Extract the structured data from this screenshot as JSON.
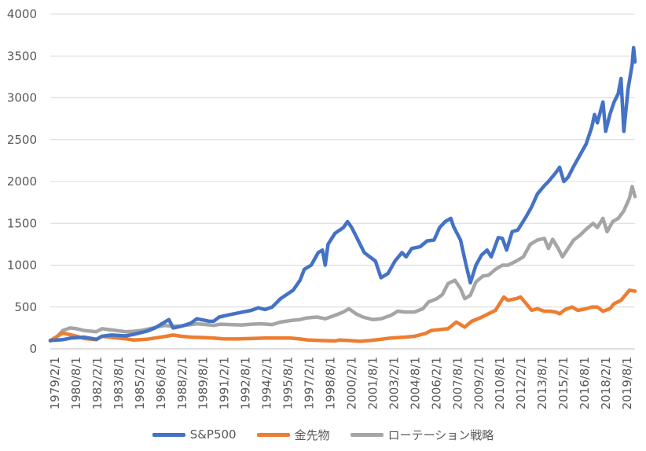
{
  "chart_data": {
    "type": "line",
    "title": "",
    "xlabel": "",
    "ylabel": "",
    "ylim": [
      0,
      4000
    ],
    "yticks": [
      0,
      500,
      1000,
      1500,
      2000,
      2500,
      3000,
      3500,
      4000
    ],
    "xticks": [
      "1979/2/1",
      "1980/8/1",
      "1982/2/1",
      "1983/8/1",
      "1985/2/1",
      "1986/8/1",
      "1988/2/1",
      "1989/8/1",
      "1991/2/1",
      "1992/8/1",
      "1994/2/1",
      "1995/8/1",
      "1997/2/1",
      "1998/8/1",
      "2000/2/1",
      "2001/8/1",
      "2003/2/1",
      "2004/8/1",
      "2006/2/1",
      "2007/8/1",
      "2009/2/1",
      "2010/8/1",
      "2012/2/1",
      "2013/8/1",
      "2015/2/1",
      "2016/8/1",
      "2018/2/1",
      "2019/8/1"
    ],
    "grid": true,
    "legend_position": "bottom",
    "series": [
      {
        "name": "S&P500",
        "color": "#4472c4",
        "points": [
          [
            1979.1,
            100
          ],
          [
            1980.0,
            110
          ],
          [
            1980.6,
            130
          ],
          [
            1981.5,
            140
          ],
          [
            1982.4,
            115
          ],
          [
            1982.8,
            150
          ],
          [
            1983.5,
            165
          ],
          [
            1984.5,
            155
          ],
          [
            1985.1,
            175
          ],
          [
            1986.0,
            210
          ],
          [
            1986.6,
            250
          ],
          [
            1987.3,
            320
          ],
          [
            1987.6,
            350
          ],
          [
            1987.9,
            250
          ],
          [
            1988.5,
            270
          ],
          [
            1989.2,
            310
          ],
          [
            1989.6,
            360
          ],
          [
            1990.5,
            330
          ],
          [
            1990.8,
            330
          ],
          [
            1991.2,
            380
          ],
          [
            1992.0,
            410
          ],
          [
            1992.6,
            430
          ],
          [
            1993.5,
            460
          ],
          [
            1994.0,
            490
          ],
          [
            1994.5,
            470
          ],
          [
            1995.0,
            500
          ],
          [
            1995.6,
            600
          ],
          [
            1996.5,
            700
          ],
          [
            1997.0,
            820
          ],
          [
            1997.3,
            950
          ],
          [
            1997.8,
            1000
          ],
          [
            1998.3,
            1150
          ],
          [
            1998.6,
            1180
          ],
          [
            1998.8,
            1000
          ],
          [
            1999.0,
            1250
          ],
          [
            1999.5,
            1380
          ],
          [
            2000.1,
            1450
          ],
          [
            2000.4,
            1520
          ],
          [
            2000.7,
            1450
          ],
          [
            2001.0,
            1350
          ],
          [
            2001.6,
            1150
          ],
          [
            2002.0,
            1100
          ],
          [
            2002.4,
            1050
          ],
          [
            2002.8,
            850
          ],
          [
            2003.3,
            900
          ],
          [
            2003.8,
            1050
          ],
          [
            2004.3,
            1150
          ],
          [
            2004.6,
            1100
          ],
          [
            2005.0,
            1200
          ],
          [
            2005.6,
            1220
          ],
          [
            2006.1,
            1290
          ],
          [
            2006.6,
            1300
          ],
          [
            2007.0,
            1450
          ],
          [
            2007.4,
            1520
          ],
          [
            2007.8,
            1560
          ],
          [
            2008.0,
            1460
          ],
          [
            2008.5,
            1300
          ],
          [
            2008.9,
            1000
          ],
          [
            2009.2,
            790
          ],
          [
            2009.6,
            1000
          ],
          [
            2010.0,
            1120
          ],
          [
            2010.4,
            1180
          ],
          [
            2010.7,
            1100
          ],
          [
            2011.2,
            1330
          ],
          [
            2011.5,
            1320
          ],
          [
            2011.8,
            1180
          ],
          [
            2012.2,
            1400
          ],
          [
            2012.6,
            1420
          ],
          [
            2013.2,
            1580
          ],
          [
            2013.6,
            1700
          ],
          [
            2014.0,
            1850
          ],
          [
            2014.5,
            1950
          ],
          [
            2014.8,
            2000
          ],
          [
            2015.3,
            2100
          ],
          [
            2015.6,
            2170
          ],
          [
            2015.9,
            2000
          ],
          [
            2016.2,
            2050
          ],
          [
            2016.6,
            2180
          ],
          [
            2017.0,
            2300
          ],
          [
            2017.5,
            2450
          ],
          [
            2017.9,
            2650
          ],
          [
            2018.1,
            2800
          ],
          [
            2018.3,
            2700
          ],
          [
            2018.7,
            2950
          ],
          [
            2018.9,
            2600
          ],
          [
            2019.2,
            2800
          ],
          [
            2019.5,
            2950
          ],
          [
            2019.8,
            3050
          ],
          [
            2020.0,
            3230
          ],
          [
            2020.2,
            2600
          ],
          [
            2020.5,
            3100
          ],
          [
            2020.8,
            3400
          ],
          [
            2020.9,
            3600
          ],
          [
            2021.0,
            3430
          ]
        ]
      },
      {
        "name": "金先物",
        "color": "#ed7d31",
        "points": [
          [
            1979.1,
            95
          ],
          [
            1979.6,
            150
          ],
          [
            1980.0,
            190
          ],
          [
            1980.5,
            170
          ],
          [
            1981.0,
            150
          ],
          [
            1981.5,
            125
          ],
          [
            1982.4,
            110
          ],
          [
            1982.8,
            150
          ],
          [
            1983.2,
            145
          ],
          [
            1983.6,
            135
          ],
          [
            1984.5,
            120
          ],
          [
            1985.1,
            105
          ],
          [
            1986.0,
            115
          ],
          [
            1986.6,
            130
          ],
          [
            1987.4,
            150
          ],
          [
            1987.9,
            165
          ],
          [
            1988.5,
            150
          ],
          [
            1989.2,
            140
          ],
          [
            1990.0,
            135
          ],
          [
            1990.8,
            130
          ],
          [
            1991.5,
            120
          ],
          [
            1992.5,
            118
          ],
          [
            1993.6,
            125
          ],
          [
            1994.5,
            130
          ],
          [
            1995.5,
            130
          ],
          [
            1996.3,
            130
          ],
          [
            1996.9,
            120
          ],
          [
            1997.6,
            105
          ],
          [
            1998.5,
            100
          ],
          [
            1999.5,
            95
          ],
          [
            1999.8,
            105
          ],
          [
            2000.5,
            100
          ],
          [
            2001.3,
            90
          ],
          [
            2002.0,
            100
          ],
          [
            2002.8,
            115
          ],
          [
            2003.5,
            130
          ],
          [
            2004.5,
            140
          ],
          [
            2005.2,
            150
          ],
          [
            2006.0,
            185
          ],
          [
            2006.4,
            220
          ],
          [
            2007.0,
            230
          ],
          [
            2007.6,
            240
          ],
          [
            2008.2,
            320
          ],
          [
            2008.8,
            260
          ],
          [
            2009.3,
            330
          ],
          [
            2009.9,
            370
          ],
          [
            2010.5,
            420
          ],
          [
            2011.0,
            460
          ],
          [
            2011.6,
            620
          ],
          [
            2011.9,
            580
          ],
          [
            2012.5,
            600
          ],
          [
            2012.8,
            620
          ],
          [
            2013.3,
            520
          ],
          [
            2013.6,
            460
          ],
          [
            2014.0,
            480
          ],
          [
            2014.5,
            450
          ],
          [
            2014.9,
            450
          ],
          [
            2015.3,
            440
          ],
          [
            2015.6,
            420
          ],
          [
            2016.0,
            470
          ],
          [
            2016.5,
            500
          ],
          [
            2016.9,
            460
          ],
          [
            2017.5,
            480
          ],
          [
            2017.9,
            500
          ],
          [
            2018.3,
            500
          ],
          [
            2018.7,
            450
          ],
          [
            2019.2,
            480
          ],
          [
            2019.5,
            540
          ],
          [
            2020.0,
            580
          ],
          [
            2020.6,
            700
          ],
          [
            2021.0,
            690
          ]
        ]
      },
      {
        "name": "ローテーション戦略",
        "color": "#a5a5a5",
        "points": [
          [
            1979.1,
            100
          ],
          [
            1979.6,
            150
          ],
          [
            1980.0,
            220
          ],
          [
            1980.5,
            250
          ],
          [
            1981.0,
            240
          ],
          [
            1981.5,
            220
          ],
          [
            1982.4,
            205
          ],
          [
            1982.8,
            240
          ],
          [
            1983.3,
            230
          ],
          [
            1983.8,
            220
          ],
          [
            1984.5,
            205
          ],
          [
            1985.1,
            210
          ],
          [
            1985.6,
            220
          ],
          [
            1986.2,
            240
          ],
          [
            1986.7,
            260
          ],
          [
            1987.3,
            280
          ],
          [
            1987.9,
            270
          ],
          [
            1988.5,
            275
          ],
          [
            1989.2,
            290
          ],
          [
            1989.6,
            300
          ],
          [
            1990.3,
            290
          ],
          [
            1990.8,
            280
          ],
          [
            1991.3,
            295
          ],
          [
            1992.0,
            290
          ],
          [
            1992.8,
            285
          ],
          [
            1993.5,
            295
          ],
          [
            1994.2,
            300
          ],
          [
            1995.0,
            290
          ],
          [
            1995.6,
            320
          ],
          [
            1996.4,
            340
          ],
          [
            1997.0,
            350
          ],
          [
            1997.5,
            370
          ],
          [
            1998.2,
            380
          ],
          [
            1998.8,
            360
          ],
          [
            1999.5,
            400
          ],
          [
            2000.1,
            440
          ],
          [
            2000.5,
            480
          ],
          [
            2001.0,
            420
          ],
          [
            2001.5,
            380
          ],
          [
            2002.2,
            350
          ],
          [
            2002.8,
            360
          ],
          [
            2003.5,
            400
          ],
          [
            2004.0,
            450
          ],
          [
            2004.5,
            440
          ],
          [
            2005.2,
            440
          ],
          [
            2005.8,
            480
          ],
          [
            2006.2,
            560
          ],
          [
            2006.8,
            600
          ],
          [
            2007.2,
            650
          ],
          [
            2007.6,
            780
          ],
          [
            2008.1,
            820
          ],
          [
            2008.5,
            720
          ],
          [
            2008.8,
            600
          ],
          [
            2009.2,
            640
          ],
          [
            2009.6,
            800
          ],
          [
            2010.1,
            870
          ],
          [
            2010.5,
            880
          ],
          [
            2011.0,
            950
          ],
          [
            2011.5,
            1000
          ],
          [
            2011.9,
            1000
          ],
          [
            2012.5,
            1050
          ],
          [
            2013.0,
            1100
          ],
          [
            2013.5,
            1250
          ],
          [
            2014.0,
            1300
          ],
          [
            2014.5,
            1320
          ],
          [
            2014.8,
            1200
          ],
          [
            2015.1,
            1310
          ],
          [
            2015.5,
            1200
          ],
          [
            2015.8,
            1100
          ],
          [
            2016.2,
            1200
          ],
          [
            2016.6,
            1300
          ],
          [
            2017.0,
            1350
          ],
          [
            2017.5,
            1430
          ],
          [
            2018.0,
            1500
          ],
          [
            2018.3,
            1450
          ],
          [
            2018.7,
            1560
          ],
          [
            2019.0,
            1400
          ],
          [
            2019.4,
            1520
          ],
          [
            2019.8,
            1560
          ],
          [
            2020.2,
            1650
          ],
          [
            2020.6,
            1800
          ],
          [
            2020.8,
            1940
          ],
          [
            2021.0,
            1820
          ]
        ]
      }
    ]
  }
}
